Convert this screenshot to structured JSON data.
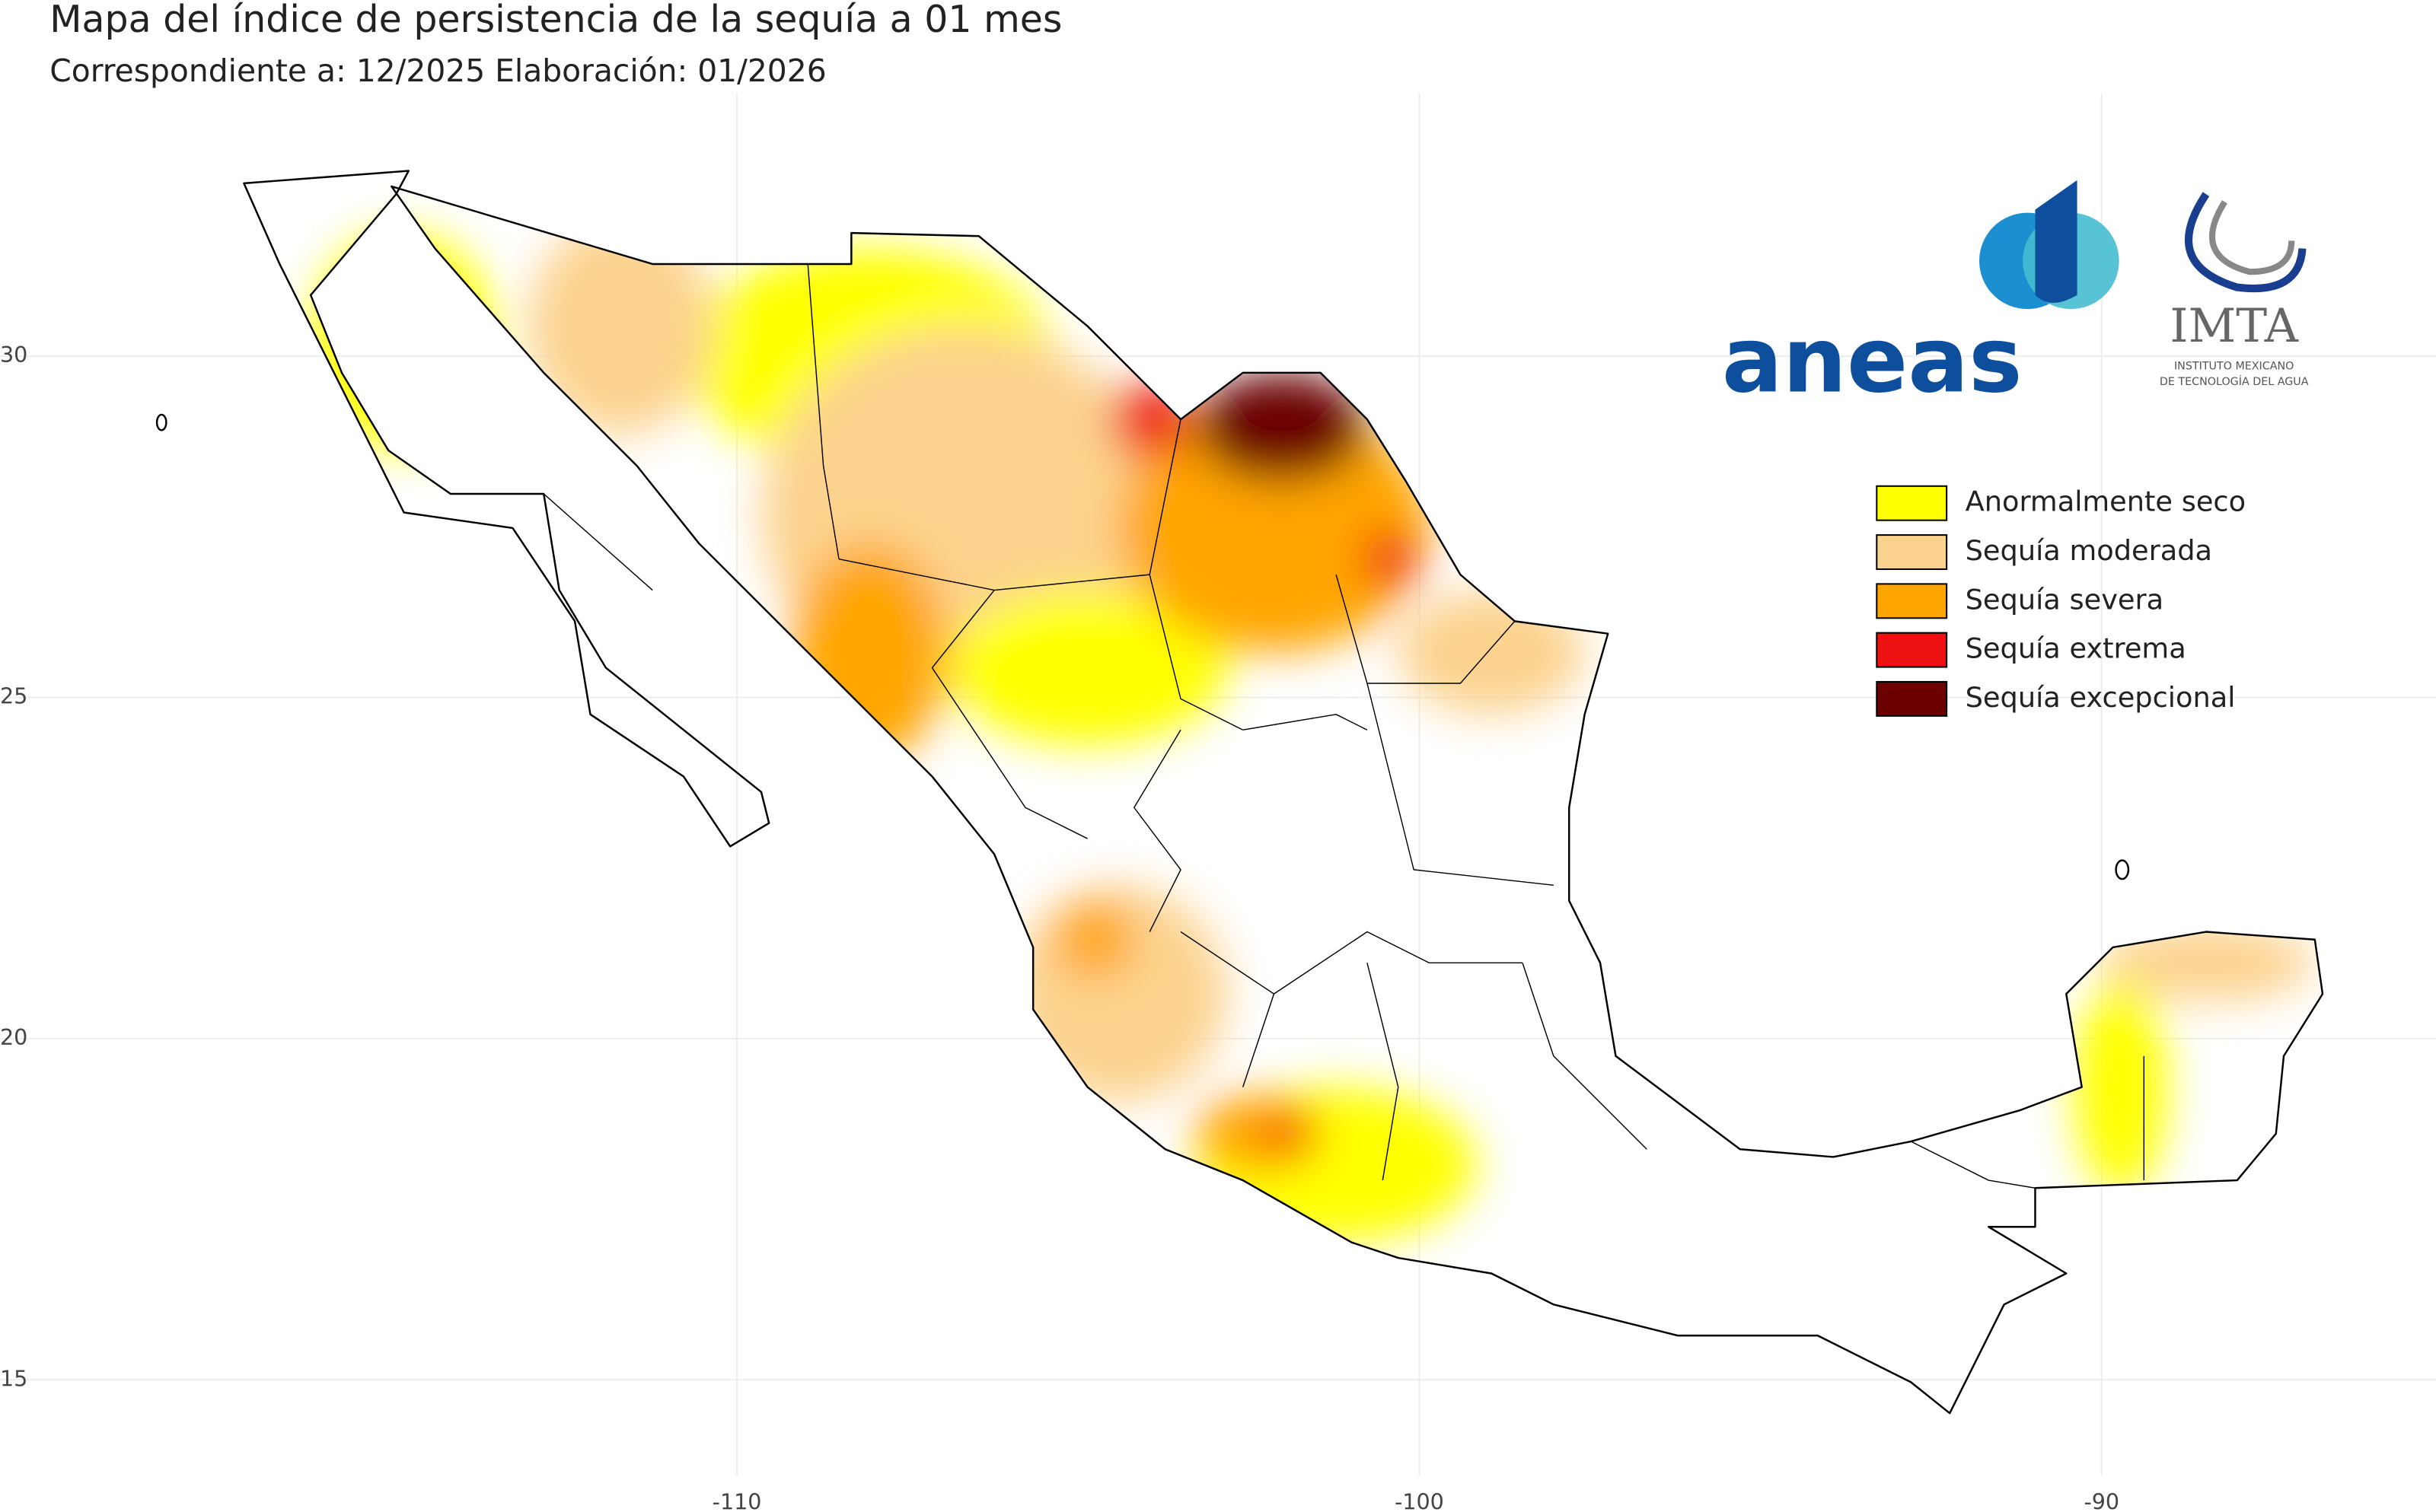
{
  "map": {
    "title": "Mapa del índice de persistencia de la sequía a  01 mes",
    "subtitle": "Correspondiente a:   12/2025  Elaboración:  01/2026",
    "xlim": [
      -120.8,
      -85.1
    ],
    "ylim": [
      13.6,
      33.4
    ],
    "xticks": [
      -110,
      -100,
      -90
    ],
    "yticks": [
      15,
      20,
      25,
      30
    ],
    "grid": true,
    "legend": [
      {
        "label": "Anormalmente seco",
        "color": "#ffff00"
      },
      {
        "label": "Sequía moderada",
        "color": "#fcd38e"
      },
      {
        "label": "Sequía severa",
        "color": "#ffa500"
      },
      {
        "label": "Sequía extrema",
        "color": "#ee1111"
      },
      {
        "label": "Sequía excepcional",
        "color": "#6b0000"
      }
    ],
    "logos": {
      "aneas": "aneas",
      "imta": "IMTA",
      "imta_line1": "INSTITUTO MEXICANO",
      "imta_line2": "DE TECNOLOGÍA DEL AGUA"
    }
  }
}
